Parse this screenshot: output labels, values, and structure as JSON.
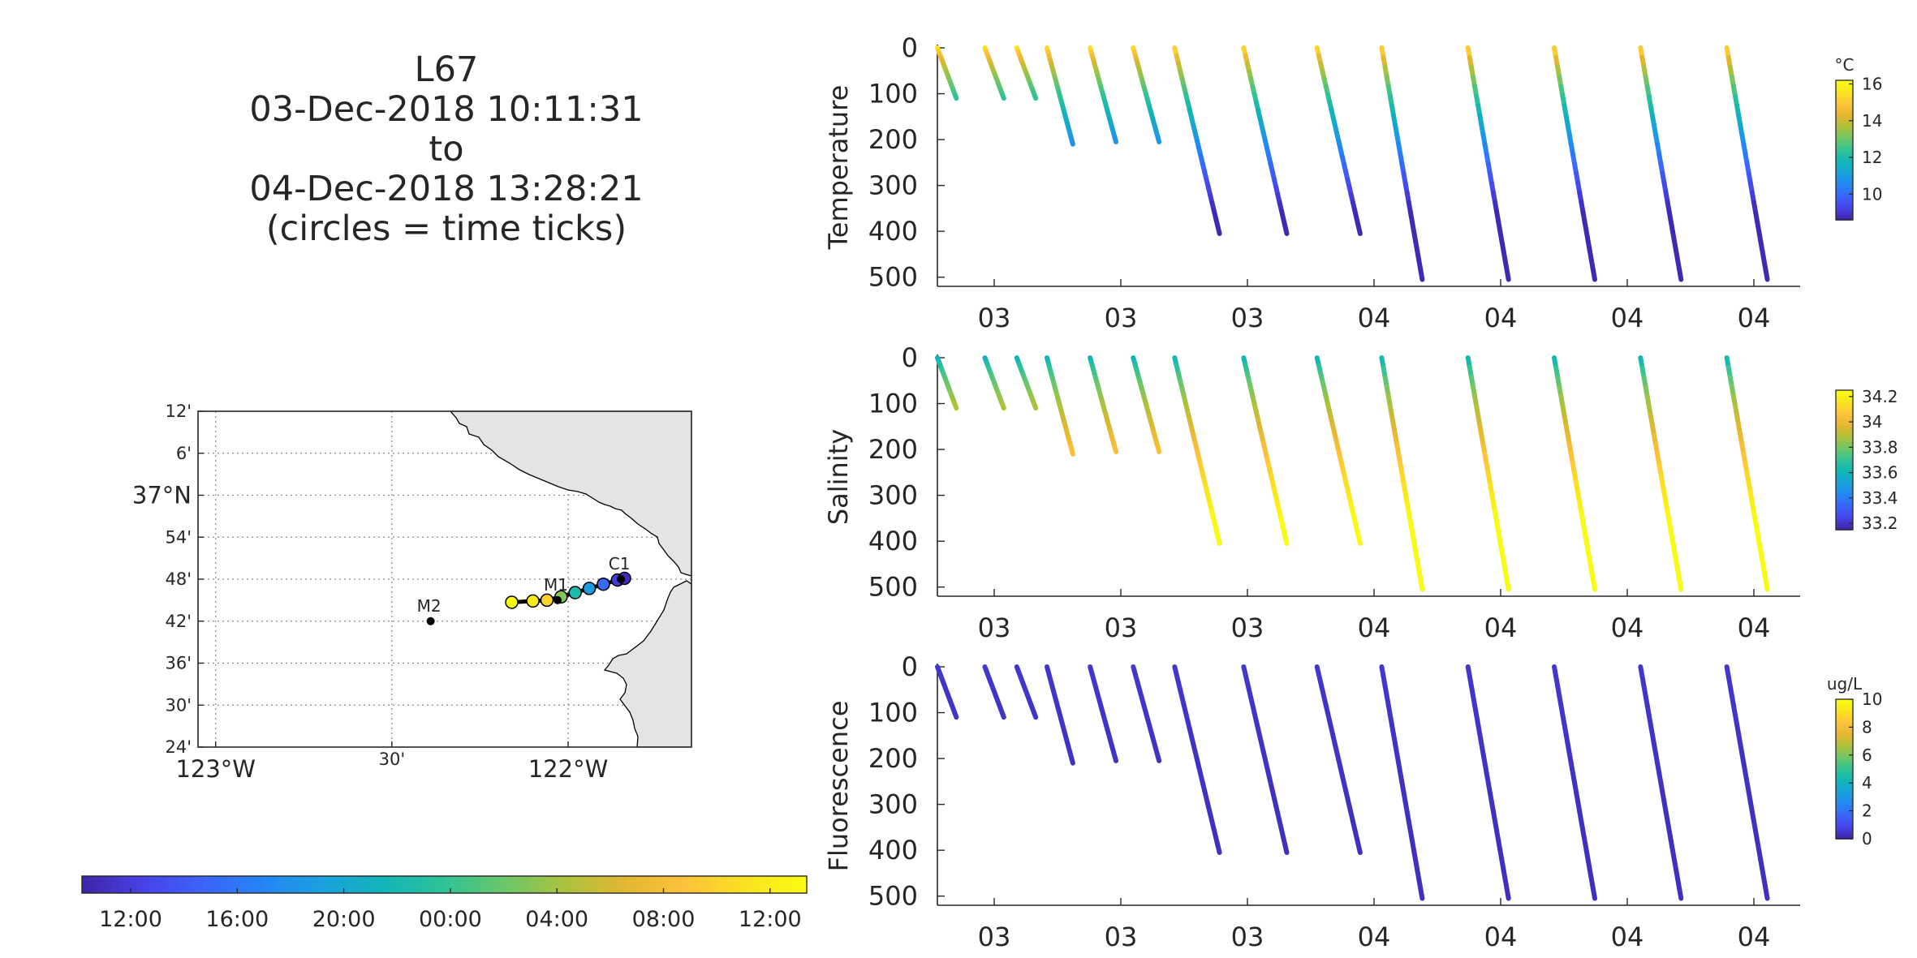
{
  "title_lines": [
    "L67",
    "03-Dec-2018 10:11:31",
    "to",
    "04-Dec-2018 13:28:21",
    "(circles = time ticks)"
  ],
  "palette": [
    "#3e26a8",
    "#4743e8",
    "#3b64fc",
    "#2486f5",
    "#1aa1dc",
    "#12b5b8",
    "#2fc297",
    "#6ac66a",
    "#aac23e",
    "#e1b731",
    "#fdc13c",
    "#fae121",
    "#f9fb14"
  ],
  "map": {
    "lat_ticks": [
      "12'",
      "6'",
      "37°N",
      "54'",
      "48'",
      "42'",
      "36'",
      "30'",
      "24'"
    ],
    "lon_ticks": [
      "123°W",
      "30'",
      "122°W"
    ],
    "lon_range": [
      -123.05,
      -121.65
    ],
    "lat_range": [
      36.4,
      37.2
    ],
    "stations": [
      {
        "name": "M2",
        "lon": -122.39,
        "lat": 36.7
      },
      {
        "name": "M1",
        "lon": -122.03,
        "lat": 36.75
      },
      {
        "name": "C1",
        "lon": -121.85,
        "lat": 36.8
      }
    ],
    "track": [
      {
        "lon": -122.16,
        "lat": 36.745,
        "t": 1.0
      },
      {
        "lon": -122.1,
        "lat": 36.748,
        "t": 0.95
      },
      {
        "lon": -122.06,
        "lat": 36.75,
        "t": 0.88
      },
      {
        "lon": -122.02,
        "lat": 36.758,
        "t": 0.62
      },
      {
        "lon": -121.98,
        "lat": 36.768,
        "t": 0.45
      },
      {
        "lon": -121.94,
        "lat": 36.778,
        "t": 0.32
      },
      {
        "lon": -121.9,
        "lat": 36.788,
        "t": 0.18
      },
      {
        "lon": -121.86,
        "lat": 36.798,
        "t": 0.06
      },
      {
        "lon": -121.84,
        "lat": 36.802,
        "t": 0.02
      }
    ]
  },
  "time_colorbar": {
    "labels": [
      "12:00",
      "16:00",
      "20:00",
      "00:00",
      "04:00",
      "08:00",
      "12:00"
    ]
  },
  "chart_data": [
    {
      "type": "scatter",
      "ylabel": "Temperature",
      "y_ticks": [
        "0",
        "100",
        "200",
        "300",
        "400",
        "500"
      ],
      "ylim": [
        0,
        520
      ],
      "x_tick_labels": [
        "03",
        "03",
        "03",
        "04",
        "04",
        "04",
        "04"
      ],
      "colorbar": {
        "unit": "°C",
        "range": [
          8.6,
          16.2
        ],
        "tick_values": [
          10,
          12,
          14,
          16
        ],
        "tick_labels": [
          "10",
          "12",
          "14",
          "16"
        ]
      },
      "profile_value_range": [
        16,
        8.7
      ],
      "colormap_reversed": false
    },
    {
      "type": "scatter",
      "ylabel": "Salinity",
      "y_ticks": [
        "0",
        "100",
        "200",
        "300",
        "400",
        "500"
      ],
      "ylim": [
        0,
        520
      ],
      "x_tick_labels": [
        "03",
        "03",
        "03",
        "04",
        "04",
        "04",
        "04"
      ],
      "colorbar": {
        "unit": "",
        "range": [
          33.15,
          34.25
        ],
        "tick_values": [
          33.2,
          33.4,
          33.6,
          33.8,
          34,
          34.2
        ],
        "tick_labels": [
          "33.2",
          "33.4",
          "33.6",
          "33.8",
          "34",
          "34.2"
        ]
      },
      "profile_value_range": [
        33.55,
        34.25
      ],
      "colormap_reversed": false
    },
    {
      "type": "scatter",
      "ylabel": "Fluorescence",
      "y_ticks": [
        "0",
        "100",
        "200",
        "300",
        "400",
        "500"
      ],
      "ylim": [
        0,
        520
      ],
      "x_tick_labels": [
        "03",
        "03",
        "03",
        "04",
        "04",
        "04",
        "04"
      ],
      "colorbar": {
        "unit": "ug/L",
        "range": [
          0,
          10
        ],
        "tick_values": [
          0,
          2,
          4,
          6,
          8,
          10
        ],
        "tick_labels": [
          "0",
          "2",
          "4",
          "6",
          "8",
          "10"
        ]
      },
      "profile_value_range": [
        0.5,
        0.3
      ],
      "colormap_reversed": false
    }
  ],
  "profiles": [
    {
      "start": 0.0,
      "end": 0.022,
      "max_depth": 110
    },
    {
      "start": 0.055,
      "end": 0.077,
      "max_depth": 110
    },
    {
      "start": 0.092,
      "end": 0.114,
      "max_depth": 110
    },
    {
      "start": 0.127,
      "end": 0.157,
      "max_depth": 210
    },
    {
      "start": 0.177,
      "end": 0.207,
      "max_depth": 205
    },
    {
      "start": 0.227,
      "end": 0.257,
      "max_depth": 205
    },
    {
      "start": 0.275,
      "end": 0.327,
      "max_depth": 405
    },
    {
      "start": 0.355,
      "end": 0.405,
      "max_depth": 405
    },
    {
      "start": 0.44,
      "end": 0.49,
      "max_depth": 405
    },
    {
      "start": 0.515,
      "end": 0.562,
      "max_depth": 505
    },
    {
      "start": 0.615,
      "end": 0.662,
      "max_depth": 505
    },
    {
      "start": 0.715,
      "end": 0.762,
      "max_depth": 505
    },
    {
      "start": 0.815,
      "end": 0.862,
      "max_depth": 505
    },
    {
      "start": 0.915,
      "end": 0.962,
      "max_depth": 505
    }
  ]
}
